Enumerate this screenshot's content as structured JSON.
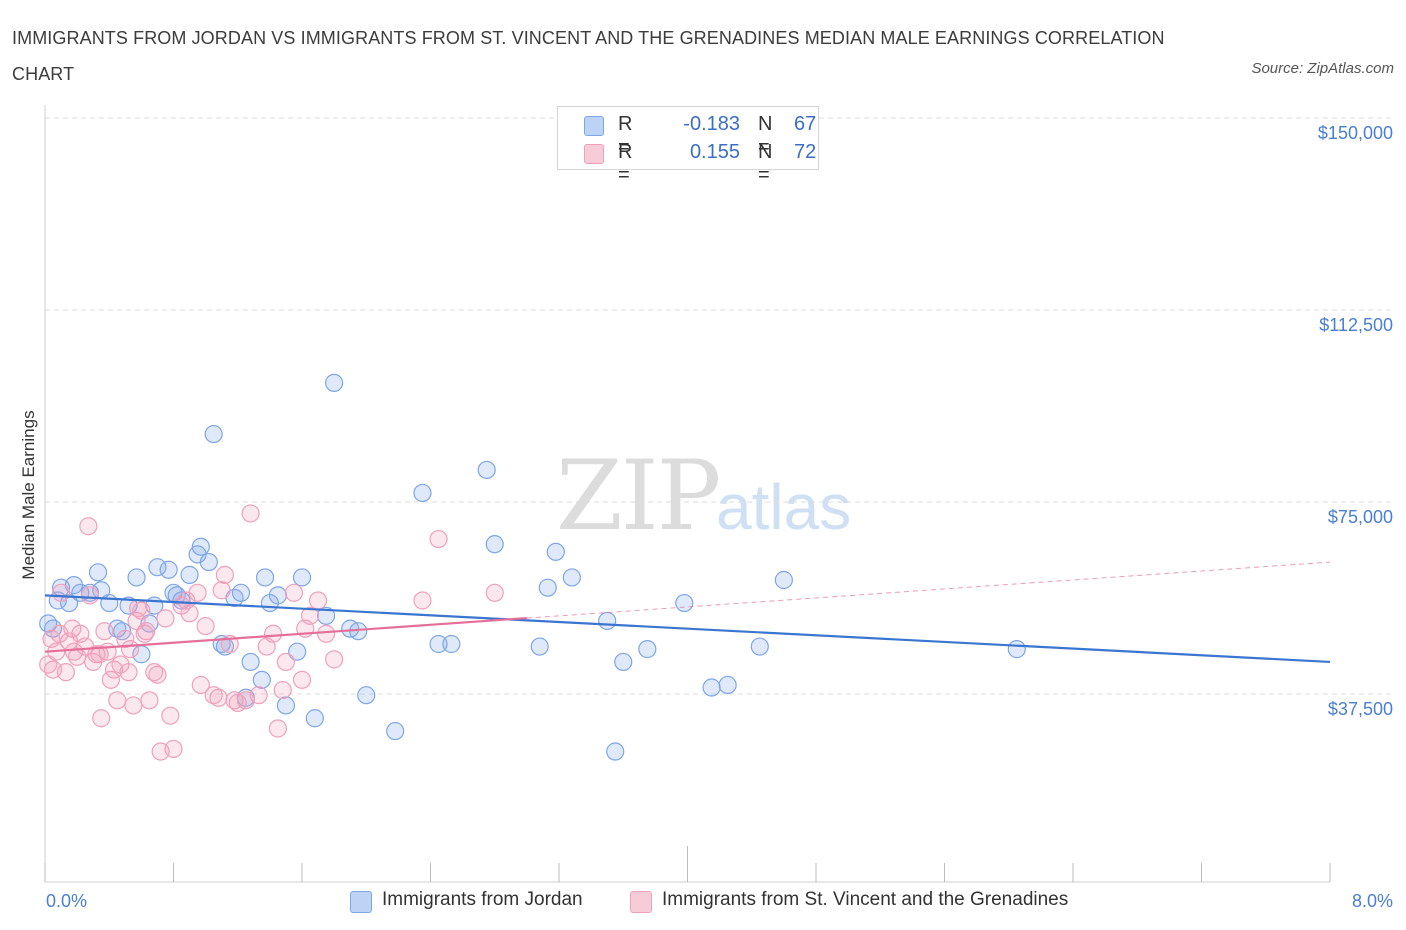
{
  "title": "IMMIGRANTS FROM JORDAN VS IMMIGRANTS FROM ST. VINCENT AND THE GRENADINES MEDIAN MALE EARNINGS CORRELATION CHART",
  "source": "Source: ZipAtlas.com",
  "watermark": {
    "zip": "ZIP",
    "atlas": "atlas"
  },
  "legend": {
    "r_label": "R =",
    "n_label": "N =",
    "series": [
      {
        "name": "Immigrants from Jordan",
        "r": "-0.183",
        "n": "67",
        "color": "#7ea6e8"
      },
      {
        "name": "Immigrants from St. Vincent and the Grenadines",
        "r": "0.155",
        "n": "72",
        "color": "#f0a0bb"
      }
    ]
  },
  "chart_data": {
    "type": "scatter",
    "title": "IMMIGRANTS FROM JORDAN VS IMMIGRANTS FROM ST. VINCENT AND THE GRENADINES MEDIAN MALE EARNINGS CORRELATION CHART",
    "xlabel": "",
    "ylabel": "Median Male Earnings",
    "xlim": [
      0,
      8
    ],
    "ylim": [
      0,
      150000
    ],
    "x_tick_labels": [
      "0.0%",
      "8.0%"
    ],
    "y_ticks": [
      {
        "value": 150000,
        "label": "$150,000"
      },
      {
        "value": 112500,
        "label": "$112,500"
      },
      {
        "value": 75000,
        "label": "$75,000"
      },
      {
        "value": 37500,
        "label": "$37,500"
      }
    ],
    "series": [
      {
        "name": "Immigrants from Jordan",
        "color": "#7ea6e8",
        "line_color": "#3a76cf",
        "trend": {
          "x0": 0,
          "y0": 59500,
          "x1": 8,
          "y1": 46500,
          "dashed_from": null
        },
        "points": [
          [
            0.02,
            54000
          ],
          [
            0.05,
            53000
          ],
          [
            0.08,
            58500
          ],
          [
            0.1,
            61000
          ],
          [
            0.15,
            58000
          ],
          [
            0.18,
            61500
          ],
          [
            0.22,
            60000
          ],
          [
            0.28,
            60000
          ],
          [
            0.33,
            64000
          ],
          [
            0.35,
            60500
          ],
          [
            0.4,
            58000
          ],
          [
            0.45,
            53000
          ],
          [
            0.48,
            52500
          ],
          [
            0.52,
            57500
          ],
          [
            0.57,
            63000
          ],
          [
            0.6,
            48000
          ],
          [
            0.65,
            54000
          ],
          [
            0.68,
            57500
          ],
          [
            0.7,
            65000
          ],
          [
            0.77,
            64500
          ],
          [
            0.8,
            60000
          ],
          [
            0.82,
            59500
          ],
          [
            0.85,
            58500
          ],
          [
            0.9,
            63500
          ],
          [
            0.95,
            67500
          ],
          [
            0.97,
            69000
          ],
          [
            1.02,
            66000
          ],
          [
            1.05,
            91000
          ],
          [
            1.1,
            50000
          ],
          [
            1.12,
            49500
          ],
          [
            1.18,
            59000
          ],
          [
            1.22,
            60000
          ],
          [
            1.25,
            39500
          ],
          [
            1.28,
            46500
          ],
          [
            1.35,
            43000
          ],
          [
            1.37,
            63000
          ],
          [
            1.4,
            58000
          ],
          [
            1.45,
            59500
          ],
          [
            1.5,
            38000
          ],
          [
            1.57,
            48500
          ],
          [
            1.6,
            63000
          ],
          [
            1.68,
            35500
          ],
          [
            1.75,
            55500
          ],
          [
            1.8,
            101000
          ],
          [
            1.9,
            53000
          ],
          [
            1.95,
            52500
          ],
          [
            2.0,
            40000
          ],
          [
            2.18,
            33000
          ],
          [
            2.35,
            79500
          ],
          [
            2.45,
            50000
          ],
          [
            2.53,
            50000
          ],
          [
            2.75,
            84000
          ],
          [
            2.8,
            69500
          ],
          [
            3.08,
            49500
          ],
          [
            3.13,
            61000
          ],
          [
            3.18,
            68000
          ],
          [
            3.28,
            63000
          ],
          [
            3.5,
            54500
          ],
          [
            3.55,
            29000
          ],
          [
            3.6,
            46500
          ],
          [
            3.75,
            49000
          ],
          [
            3.98,
            58000
          ],
          [
            4.15,
            41500
          ],
          [
            4.25,
            42000
          ],
          [
            4.45,
            49500
          ],
          [
            4.6,
            62500
          ],
          [
            6.05,
            49000
          ]
        ]
      },
      {
        "name": "Immigrants from St. Vincent and the Grenadines",
        "color": "#f0a0bb",
        "line_color": "#e4709a",
        "trend": {
          "x0": 0,
          "y0": 48500,
          "x1": 8,
          "y1": 66000,
          "solid_until": 3.0
        },
        "points": [
          [
            0.02,
            46000
          ],
          [
            0.04,
            51000
          ],
          [
            0.05,
            45000
          ],
          [
            0.07,
            48500
          ],
          [
            0.09,
            52000
          ],
          [
            0.1,
            60000
          ],
          [
            0.13,
            44500
          ],
          [
            0.15,
            50500
          ],
          [
            0.17,
            53000
          ],
          [
            0.18,
            48500
          ],
          [
            0.2,
            47500
          ],
          [
            0.22,
            52000
          ],
          [
            0.25,
            49500
          ],
          [
            0.27,
            73000
          ],
          [
            0.28,
            59500
          ],
          [
            0.3,
            46500
          ],
          [
            0.32,
            48000
          ],
          [
            0.34,
            48000
          ],
          [
            0.35,
            35500
          ],
          [
            0.37,
            52500
          ],
          [
            0.39,
            48500
          ],
          [
            0.41,
            43000
          ],
          [
            0.43,
            45000
          ],
          [
            0.45,
            39000
          ],
          [
            0.47,
            46000
          ],
          [
            0.5,
            51000
          ],
          [
            0.52,
            44500
          ],
          [
            0.53,
            49000
          ],
          [
            0.55,
            38000
          ],
          [
            0.57,
            54500
          ],
          [
            0.6,
            56500
          ],
          [
            0.62,
            52000
          ],
          [
            0.63,
            52500
          ],
          [
            0.65,
            39000
          ],
          [
            0.68,
            44500
          ],
          [
            0.7,
            44000
          ],
          [
            0.72,
            29000
          ],
          [
            0.75,
            55000
          ],
          [
            0.78,
            36000
          ],
          [
            0.8,
            29500
          ],
          [
            0.85,
            57500
          ],
          [
            0.88,
            58500
          ],
          [
            0.9,
            56000
          ],
          [
            0.95,
            60000
          ],
          [
            0.97,
            42000
          ],
          [
            1.0,
            53500
          ],
          [
            1.05,
            40000
          ],
          [
            1.08,
            39500
          ],
          [
            1.12,
            63500
          ],
          [
            1.15,
            50000
          ],
          [
            1.18,
            39000
          ],
          [
            1.2,
            38500
          ],
          [
            1.25,
            39000
          ],
          [
            1.28,
            75500
          ],
          [
            1.33,
            40000
          ],
          [
            1.38,
            49500
          ],
          [
            1.42,
            52000
          ],
          [
            1.45,
            33500
          ],
          [
            1.48,
            41000
          ],
          [
            1.5,
            46500
          ],
          [
            1.55,
            60000
          ],
          [
            1.6,
            43000
          ],
          [
            1.62,
            53000
          ],
          [
            1.65,
            55500
          ],
          [
            1.7,
            58500
          ],
          [
            1.75,
            52000
          ],
          [
            1.8,
            47000
          ],
          [
            2.35,
            58500
          ],
          [
            2.45,
            70500
          ],
          [
            2.8,
            60000
          ],
          [
            0.58,
            57000
          ],
          [
            1.1,
            60500
          ]
        ]
      }
    ]
  }
}
